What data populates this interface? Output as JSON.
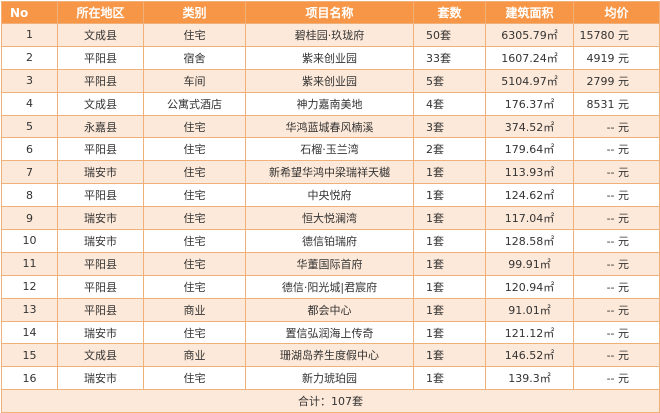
{
  "headers": [
    "No",
    "所在地区",
    "类别",
    "项目名称",
    "套数",
    "建筑面积",
    "均价"
  ],
  "rows": [
    {
      "no": "1",
      "region": "文成县",
      "category": "住宅",
      "name": "碧桂园·玖珑府",
      "units": "50套",
      "area": "6305.79㎡",
      "price": "15780 元"
    },
    {
      "no": "2",
      "region": "平阳县",
      "category": "宿舍",
      "name": "紫来创业园",
      "units": "33套",
      "area": "1607.24㎡",
      "price": "4919 元"
    },
    {
      "no": "3",
      "region": "平阳县",
      "category": "车间",
      "name": "紫来创业园",
      "units": "5套",
      "area": "5104.97㎡",
      "price": "2799 元"
    },
    {
      "no": "4",
      "region": "文成县",
      "category": "公寓式酒店",
      "name": "神力嘉南美地",
      "units": "4套",
      "area": "176.37㎡",
      "price": "8531 元"
    },
    {
      "no": "5",
      "region": "永嘉县",
      "category": "住宅",
      "name": "华鸿蓝城春风楠溪",
      "units": "3套",
      "area": "374.52㎡",
      "price": "-- 元"
    },
    {
      "no": "6",
      "region": "平阳县",
      "category": "住宅",
      "name": "石榴·玉兰湾",
      "units": "2套",
      "area": "179.64㎡",
      "price": "-- 元"
    },
    {
      "no": "7",
      "region": "瑞安市",
      "category": "住宅",
      "name": "新希望华鸿中梁瑞祥天樾",
      "units": "1套",
      "area": "113.93㎡",
      "price": "-- 元"
    },
    {
      "no": "8",
      "region": "平阳县",
      "category": "住宅",
      "name": "中央悦府",
      "units": "1套",
      "area": "124.62㎡",
      "price": "-- 元"
    },
    {
      "no": "9",
      "region": "瑞安市",
      "category": "住宅",
      "name": "恒大悦澜湾",
      "units": "1套",
      "area": "117.04㎡",
      "price": "-- 元"
    },
    {
      "no": "10",
      "region": "瑞安市",
      "category": "住宅",
      "name": "德信铂瑞府",
      "units": "1套",
      "area": "128.58㎡",
      "price": "-- 元"
    },
    {
      "no": "11",
      "region": "平阳县",
      "category": "住宅",
      "name": "华董国际首府",
      "units": "1套",
      "area": "99.91㎡",
      "price": "-- 元"
    },
    {
      "no": "12",
      "region": "平阳县",
      "category": "住宅",
      "name": "德信·阳光城|君宸府",
      "units": "1套",
      "area": "120.94㎡",
      "price": "-- 元"
    },
    {
      "no": "13",
      "region": "平阳县",
      "category": "商业",
      "name": "都会中心",
      "units": "1套",
      "area": "91.01㎡",
      "price": "-- 元"
    },
    {
      "no": "14",
      "region": "瑞安市",
      "category": "住宅",
      "name": "置信弘润海上传奇",
      "units": "1套",
      "area": "121.12㎡",
      "price": "-- 元"
    },
    {
      "no": "15",
      "region": "文成县",
      "category": "商业",
      "name": "珊湖岛养生度假中心",
      "units": "1套",
      "area": "146.52㎡",
      "price": "-- 元"
    },
    {
      "no": "16",
      "region": "瑞安市",
      "category": "住宅",
      "name": "新力琥珀园",
      "units": "1套",
      "area": "139.3㎡",
      "price": "-- 元"
    }
  ],
  "total": "合计：107套",
  "colors": {
    "header_bg": "#f79646",
    "odd_row_bg": "#fde9d9",
    "even_row_bg": "#ffffff",
    "border": "#f0b07a"
  }
}
